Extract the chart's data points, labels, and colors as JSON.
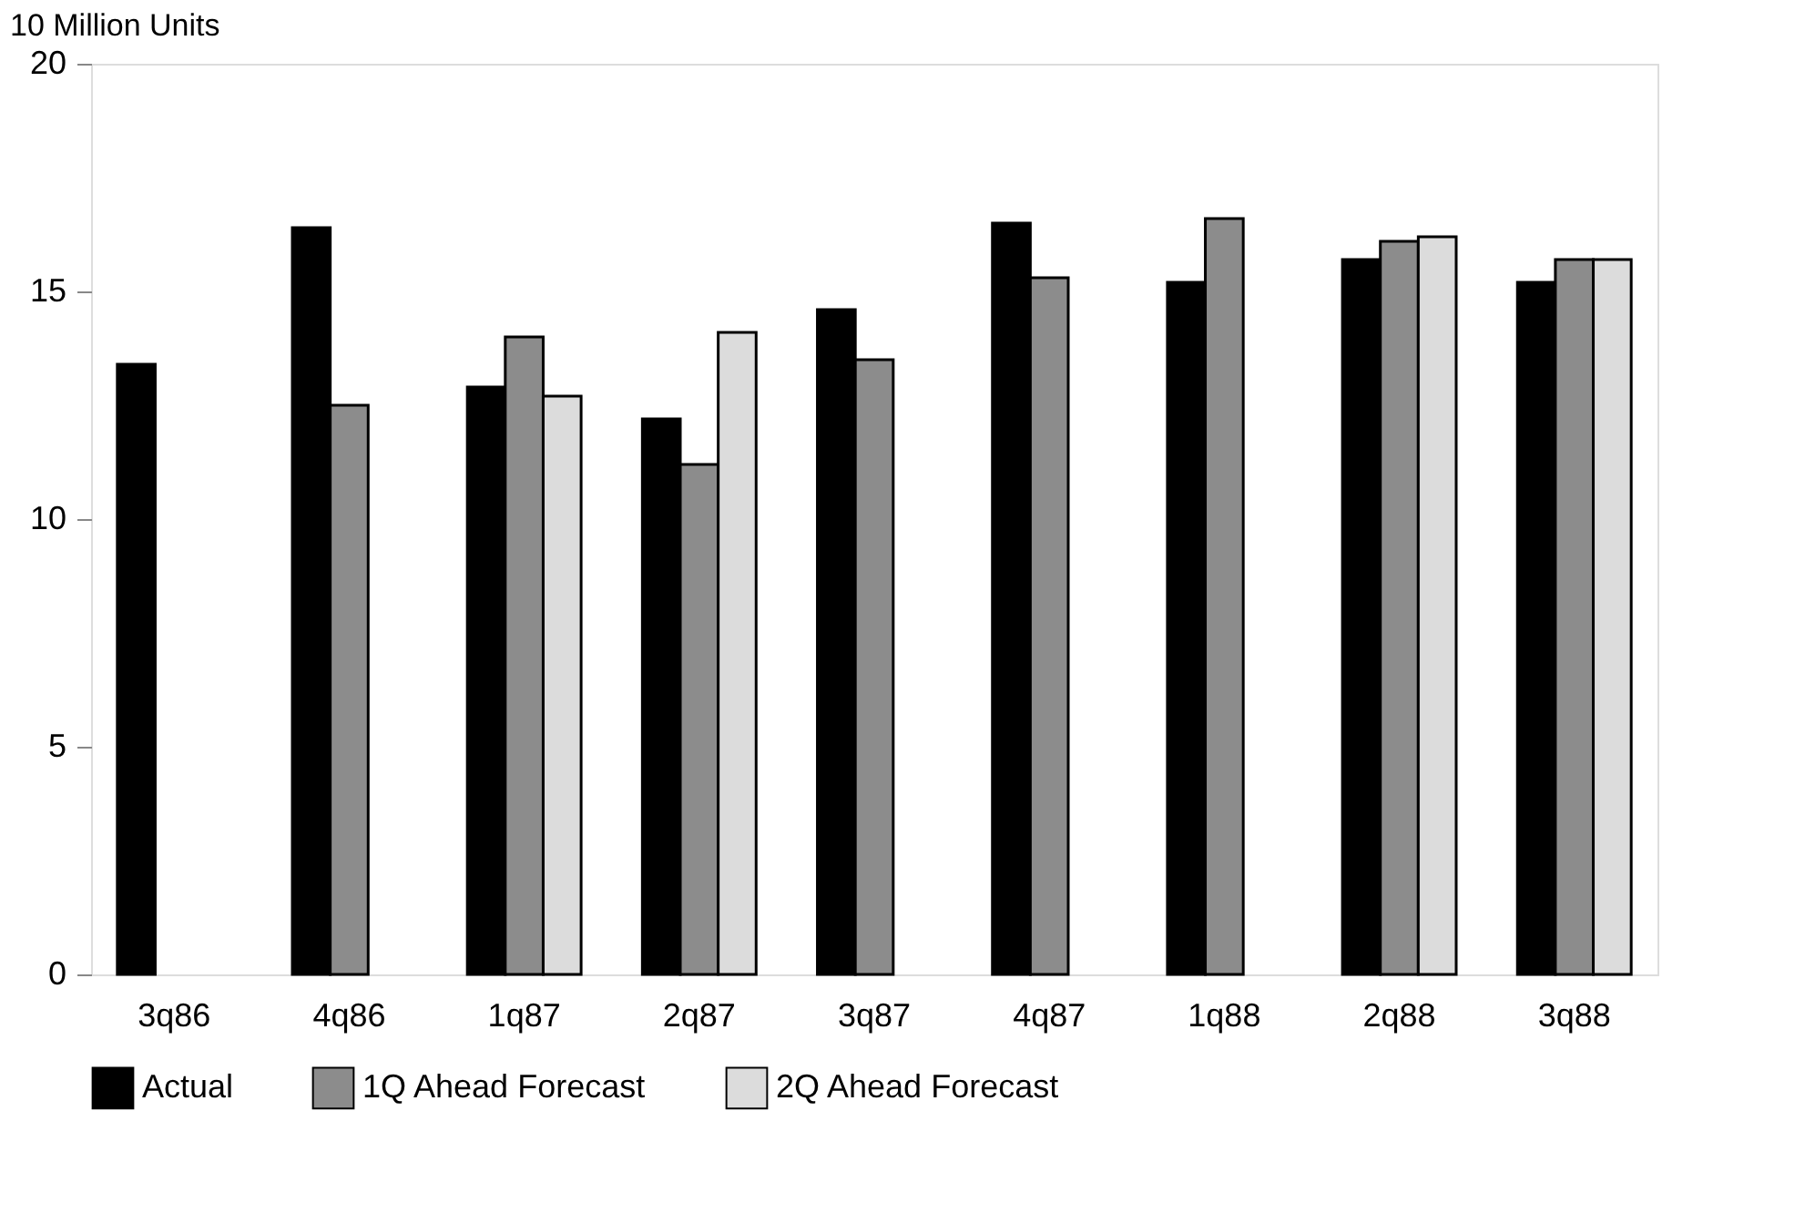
{
  "chart_data": {
    "type": "bar",
    "ylabel": "10 Million Units",
    "categories": [
      "3q86",
      "4q86",
      "1q87",
      "2q87",
      "3q87",
      "4q87",
      "1q88",
      "2q88",
      "3q88"
    ],
    "series": [
      {
        "name": "Actual",
        "color": "#000000",
        "values": [
          13.4,
          16.4,
          12.9,
          12.2,
          14.6,
          16.5,
          15.2,
          15.7,
          15.2
        ]
      },
      {
        "name": "1Q Ahead Forecast",
        "color": "#8c8c8c",
        "values": [
          null,
          12.5,
          14.0,
          11.2,
          13.5,
          15.3,
          16.6,
          16.1,
          15.7
        ]
      },
      {
        "name": "2Q Ahead Forecast",
        "color": "#dcdcdc",
        "values": [
          null,
          null,
          12.7,
          14.1,
          null,
          null,
          null,
          16.2,
          15.7
        ]
      }
    ],
    "ylim": [
      0,
      20
    ],
    "yticks": [
      0,
      5,
      10,
      15,
      20
    ],
    "grid": false,
    "legend": "bottom"
  }
}
